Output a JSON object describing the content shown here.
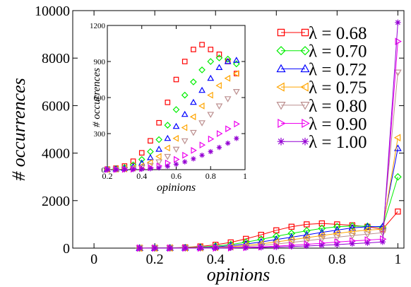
{
  "chart_data": [
    {
      "type": "line",
      "xlabel": "opinions",
      "ylabel": "# occurrences",
      "xlim": [
        -0.07,
        1.02
      ],
      "ylim": [
        0,
        10000
      ],
      "xticks": [
        0,
        0.2,
        0.4,
        0.6,
        0.8,
        1
      ],
      "xtick_labels": [
        "0",
        "0.2",
        "0.4",
        "0.6",
        "0.8",
        "1"
      ],
      "yticks": [
        0,
        2000,
        4000,
        6000,
        8000,
        10000
      ],
      "ytick_labels": [
        "0",
        "2000",
        "4000",
        "6000",
        "8000",
        "10000"
      ],
      "legend_position": "top-right",
      "x": [
        0.15,
        0.2,
        0.25,
        0.3,
        0.35,
        0.4,
        0.45,
        0.5,
        0.55,
        0.6,
        0.65,
        0.7,
        0.75,
        0.8,
        0.85,
        0.9,
        0.95,
        1.0
      ],
      "series": [
        {
          "name": "λ = 0.68",
          "color": "#ff0000",
          "marker": "square",
          "values": [
            2,
            5,
            12,
            30,
            70,
            140,
            240,
            390,
            560,
            750,
            900,
            1000,
            1040,
            1000,
            960,
            900,
            800,
            1540
          ]
        },
        {
          "name": "λ = 0.70",
          "color": "#00ee00",
          "marker": "diamond",
          "values": [
            1,
            3,
            8,
            18,
            40,
            85,
            150,
            250,
            370,
            500,
            620,
            730,
            830,
            900,
            930,
            920,
            880,
            3000
          ]
        },
        {
          "name": "λ = 0.72",
          "color": "#0000ff",
          "marker": "triangle-up",
          "values": [
            1,
            2,
            5,
            10,
            25,
            55,
            100,
            170,
            260,
            360,
            460,
            560,
            660,
            760,
            850,
            900,
            910,
            4200
          ]
        },
        {
          "name": "λ = 0.75",
          "color": "#ffa500",
          "marker": "triangle-left",
          "values": [
            0,
            1,
            3,
            6,
            14,
            30,
            60,
            110,
            180,
            260,
            350,
            440,
            530,
            620,
            700,
            760,
            800,
            4650
          ]
        },
        {
          "name": "λ = 0.80",
          "color": "#bc8f8f",
          "marker": "triangle-down",
          "values": [
            0,
            0,
            2,
            4,
            8,
            18,
            35,
            65,
            110,
            170,
            240,
            310,
            390,
            460,
            530,
            590,
            650,
            7400
          ]
        },
        {
          "name": "λ = 0.90",
          "color": "#ee00ee",
          "marker": "triangle-right",
          "values": [
            0,
            0,
            1,
            2,
            4,
            8,
            16,
            30,
            55,
            85,
            120,
            160,
            205,
            255,
            300,
            340,
            380,
            8700
          ]
        },
        {
          "name": "λ = 1.00",
          "color": "#9400d3",
          "marker": "star",
          "values": [
            0,
            0,
            0,
            1,
            2,
            4,
            8,
            15,
            28,
            45,
            65,
            90,
            120,
            150,
            185,
            220,
            260,
            9500
          ]
        }
      ]
    },
    {
      "type": "scatter",
      "xlabel": "opinions",
      "ylabel": "# occurrences",
      "xlim": [
        0.2,
        1.0
      ],
      "ylim": [
        0,
        1200
      ],
      "xticks": [
        0.2,
        0.4,
        0.6,
        0.8,
        1
      ],
      "xtick_labels": [
        "0.2",
        "0.4",
        "0.6",
        "0.8",
        "1"
      ],
      "yticks": [
        0,
        300,
        600,
        900,
        1200
      ],
      "ytick_labels": [
        "0",
        "300",
        "600",
        "900",
        "1200"
      ]
    }
  ]
}
